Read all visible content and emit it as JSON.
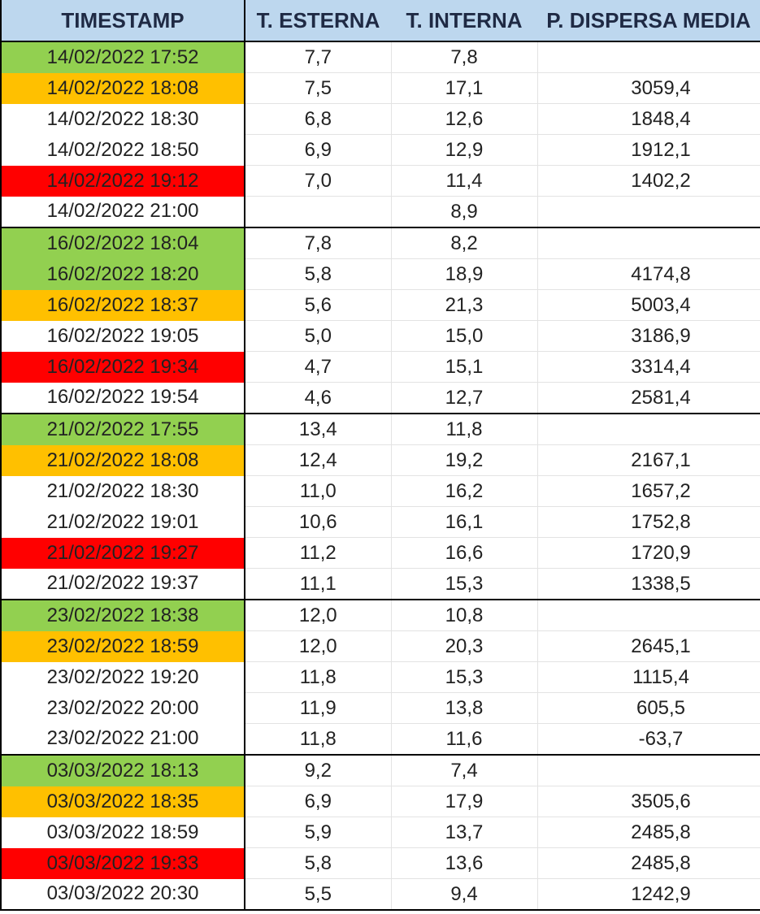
{
  "headers": {
    "timestamp": "TIMESTAMP",
    "t_esterna": "T. ESTERNA",
    "t_interna": "T. INTERNA",
    "p_dispersa": "P. DISPERSA MEDIA"
  },
  "colors": {
    "header_bg": "#bdd7ee",
    "green": "#92d050",
    "orange": "#ffc000",
    "red": "#ff0000"
  },
  "rows": [
    {
      "timestamp": "14/02/2022 17:52",
      "t_esterna": "7,7",
      "t_interna": "7,8",
      "p_dispersa": "",
      "highlight": "green"
    },
    {
      "timestamp": "14/02/2022 18:08",
      "t_esterna": "7,5",
      "t_interna": "17,1",
      "p_dispersa": "3059,4",
      "highlight": "orange"
    },
    {
      "timestamp": "14/02/2022 18:30",
      "t_esterna": "6,8",
      "t_interna": "12,6",
      "p_dispersa": "1848,4",
      "highlight": "none"
    },
    {
      "timestamp": "14/02/2022 18:50",
      "t_esterna": "6,9",
      "t_interna": "12,9",
      "p_dispersa": "1912,1",
      "highlight": "none"
    },
    {
      "timestamp": "14/02/2022 19:12",
      "t_esterna": "7,0",
      "t_interna": "11,4",
      "p_dispersa": "1402,2",
      "highlight": "red"
    },
    {
      "timestamp": "14/02/2022 21:00",
      "t_esterna": "",
      "t_interna": "8,9",
      "p_dispersa": "",
      "highlight": "none",
      "group_end": true
    },
    {
      "timestamp": "16/02/2022 18:04",
      "t_esterna": "7,8",
      "t_interna": "8,2",
      "p_dispersa": "",
      "highlight": "green"
    },
    {
      "timestamp": "16/02/2022 18:20",
      "t_esterna": "5,8",
      "t_interna": "18,9",
      "p_dispersa": "4174,8",
      "highlight": "green"
    },
    {
      "timestamp": "16/02/2022 18:37",
      "t_esterna": "5,6",
      "t_interna": "21,3",
      "p_dispersa": "5003,4",
      "highlight": "orange"
    },
    {
      "timestamp": "16/02/2022 19:05",
      "t_esterna": "5,0",
      "t_interna": "15,0",
      "p_dispersa": "3186,9",
      "highlight": "none"
    },
    {
      "timestamp": "16/02/2022 19:34",
      "t_esterna": "4,7",
      "t_interna": "15,1",
      "p_dispersa": "3314,4",
      "highlight": "red"
    },
    {
      "timestamp": "16/02/2022 19:54",
      "t_esterna": "4,6",
      "t_interna": "12,7",
      "p_dispersa": "2581,4",
      "highlight": "none",
      "group_end": true
    },
    {
      "timestamp": "21/02/2022 17:55",
      "t_esterna": "13,4",
      "t_interna": "11,8",
      "p_dispersa": "",
      "highlight": "green"
    },
    {
      "timestamp": "21/02/2022 18:08",
      "t_esterna": "12,4",
      "t_interna": "19,2",
      "p_dispersa": "2167,1",
      "highlight": "orange"
    },
    {
      "timestamp": "21/02/2022 18:30",
      "t_esterna": "11,0",
      "t_interna": "16,2",
      "p_dispersa": "1657,2",
      "highlight": "none"
    },
    {
      "timestamp": "21/02/2022 19:01",
      "t_esterna": "10,6",
      "t_interna": "16,1",
      "p_dispersa": "1752,8",
      "highlight": "none"
    },
    {
      "timestamp": "21/02/2022 19:27",
      "t_esterna": "11,2",
      "t_interna": "16,6",
      "p_dispersa": "1720,9",
      "highlight": "red"
    },
    {
      "timestamp": "21/02/2022 19:37",
      "t_esterna": "11,1",
      "t_interna": "15,3",
      "p_dispersa": "1338,5",
      "highlight": "none",
      "group_end": true
    },
    {
      "timestamp": "23/02/2022 18:38",
      "t_esterna": "12,0",
      "t_interna": "10,8",
      "p_dispersa": "",
      "highlight": "green"
    },
    {
      "timestamp": "23/02/2022 18:59",
      "t_esterna": "12,0",
      "t_interna": "20,3",
      "p_dispersa": "2645,1",
      "highlight": "orange"
    },
    {
      "timestamp": "23/02/2022 19:20",
      "t_esterna": "11,8",
      "t_interna": "15,3",
      "p_dispersa": "1115,4",
      "highlight": "none"
    },
    {
      "timestamp": "23/02/2022 20:00",
      "t_esterna": "11,9",
      "t_interna": "13,8",
      "p_dispersa": "605,5",
      "highlight": "none"
    },
    {
      "timestamp": "23/02/2022 21:00",
      "t_esterna": "11,8",
      "t_interna": "11,6",
      "p_dispersa": "-63,7",
      "highlight": "none",
      "group_end": true
    },
    {
      "timestamp": "03/03/2022 18:13",
      "t_esterna": "9,2",
      "t_interna": "7,4",
      "p_dispersa": "",
      "highlight": "green"
    },
    {
      "timestamp": "03/03/2022 18:35",
      "t_esterna": "6,9",
      "t_interna": "17,9",
      "p_dispersa": "3505,6",
      "highlight": "orange"
    },
    {
      "timestamp": "03/03/2022 18:59",
      "t_esterna": "5,9",
      "t_interna": "13,7",
      "p_dispersa": "2485,8",
      "highlight": "none"
    },
    {
      "timestamp": "03/03/2022 19:33",
      "t_esterna": "5,8",
      "t_interna": "13,6",
      "p_dispersa": "2485,8",
      "highlight": "red"
    },
    {
      "timestamp": "03/03/2022 20:30",
      "t_esterna": "5,5",
      "t_interna": "9,4",
      "p_dispersa": "1242,9",
      "highlight": "none",
      "last": true
    }
  ]
}
